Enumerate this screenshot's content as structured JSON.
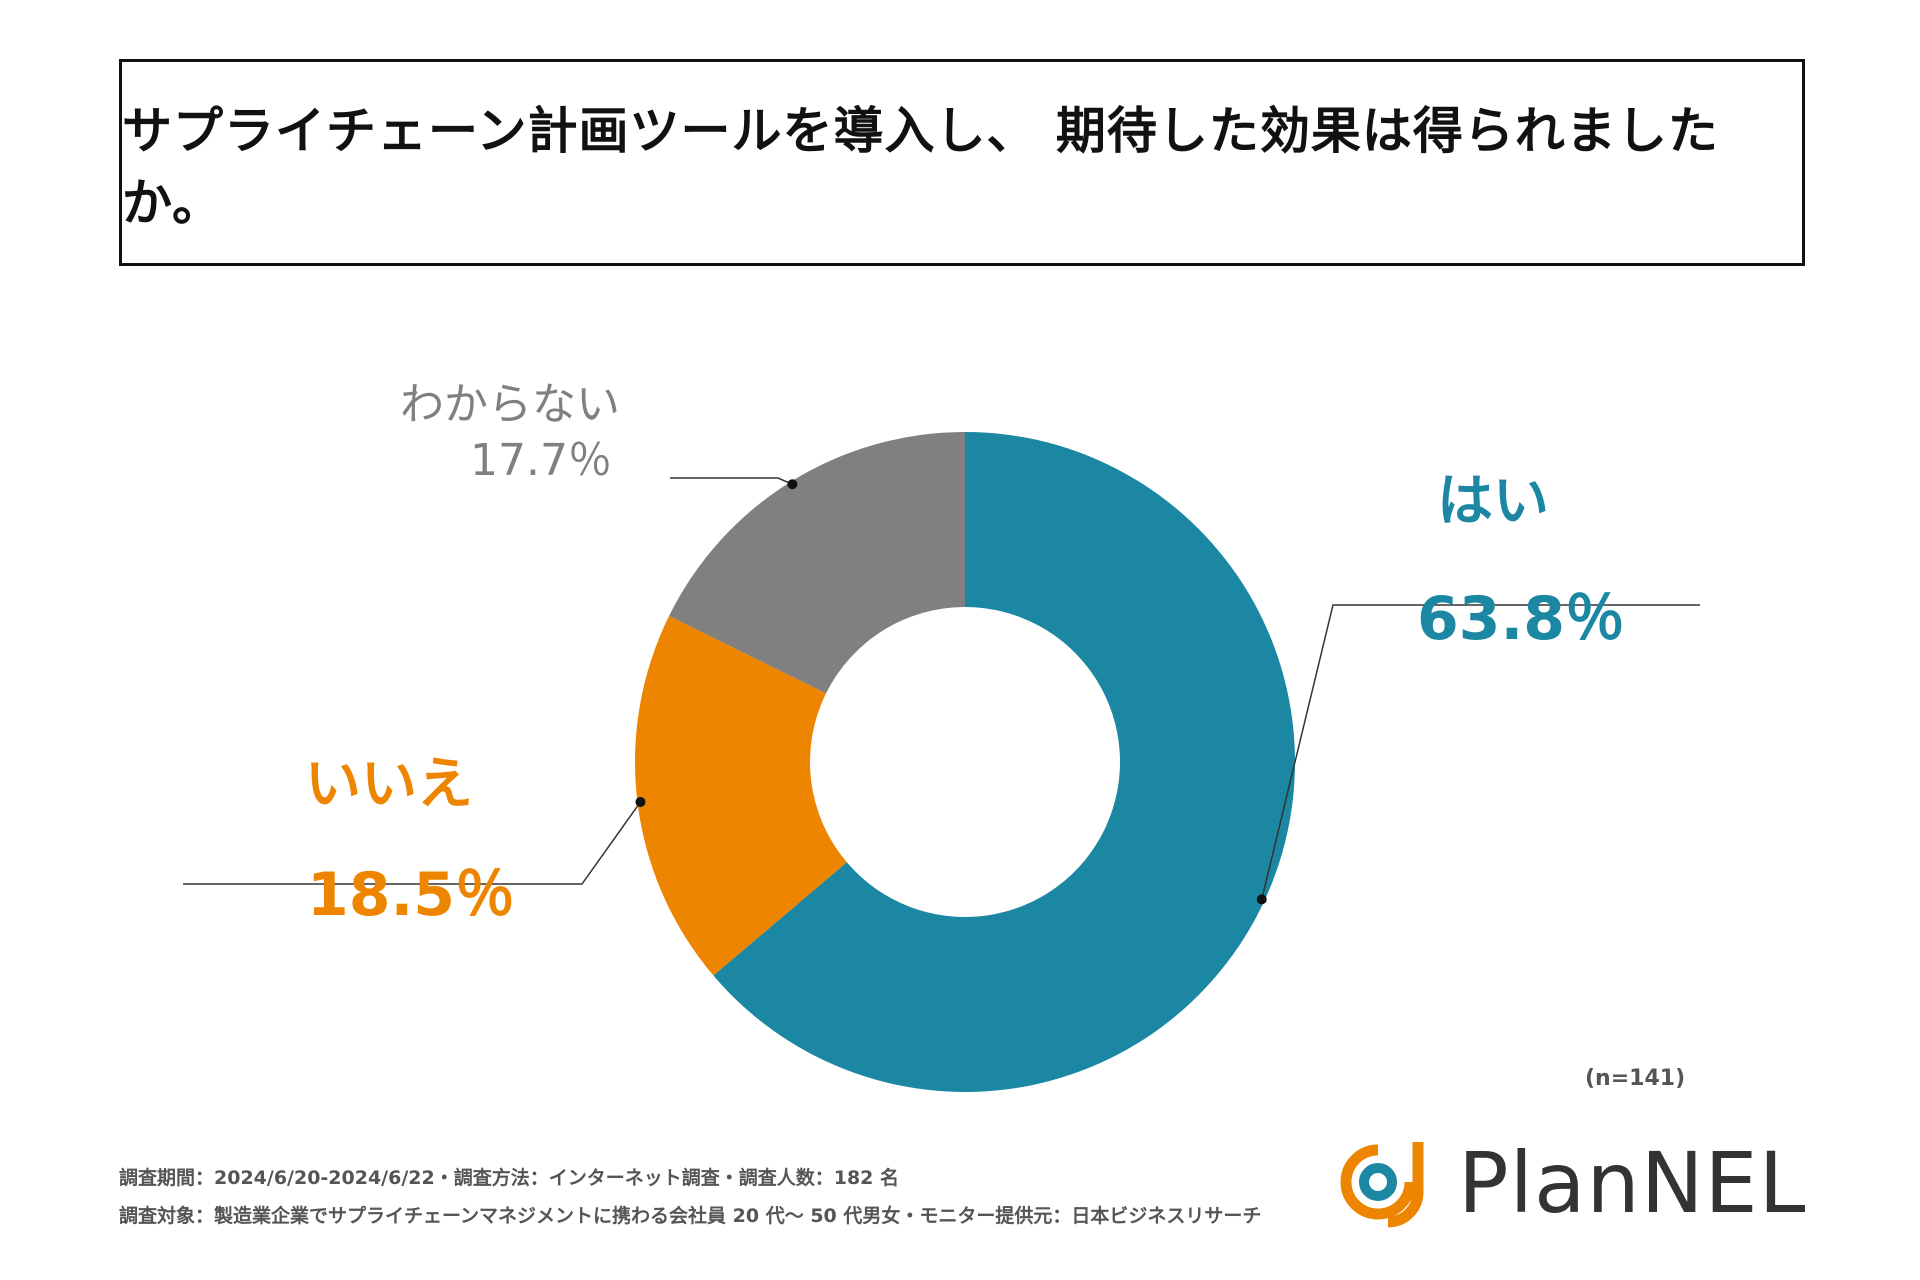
{
  "title": "サプライチェーン計画ツールを導入し、 期待した効果は得られましたか。",
  "chart_data": {
    "type": "pie",
    "donut": true,
    "title": "サプライチェーン計画ツールを導入し、 期待した効果は得られましたか。",
    "categories": [
      "はい",
      "いいえ",
      "わからない"
    ],
    "values": [
      63.8,
      18.5,
      17.7
    ],
    "value_labels": [
      "63.8％",
      "18.5％",
      "17.7％"
    ],
    "colors": [
      "#1b87a3",
      "#ee8500",
      "#808080"
    ],
    "start": "top, clockwise"
  },
  "note": "(n=141)",
  "footer": {
    "line1": "調査期間：2024/6/20-2024/6/22・調査方法：インターネット調査・調査人数：182 名",
    "line2": "調査対象：製造業企業でサプライチェーンマネジメントに携わる会社員 20 代～ 50 代男女・モニター提供元：日本ビジネスリサーチ"
  },
  "logo": {
    "text": "PlanNEL",
    "colors": [
      "#1b87a3",
      "#ee8500"
    ]
  }
}
